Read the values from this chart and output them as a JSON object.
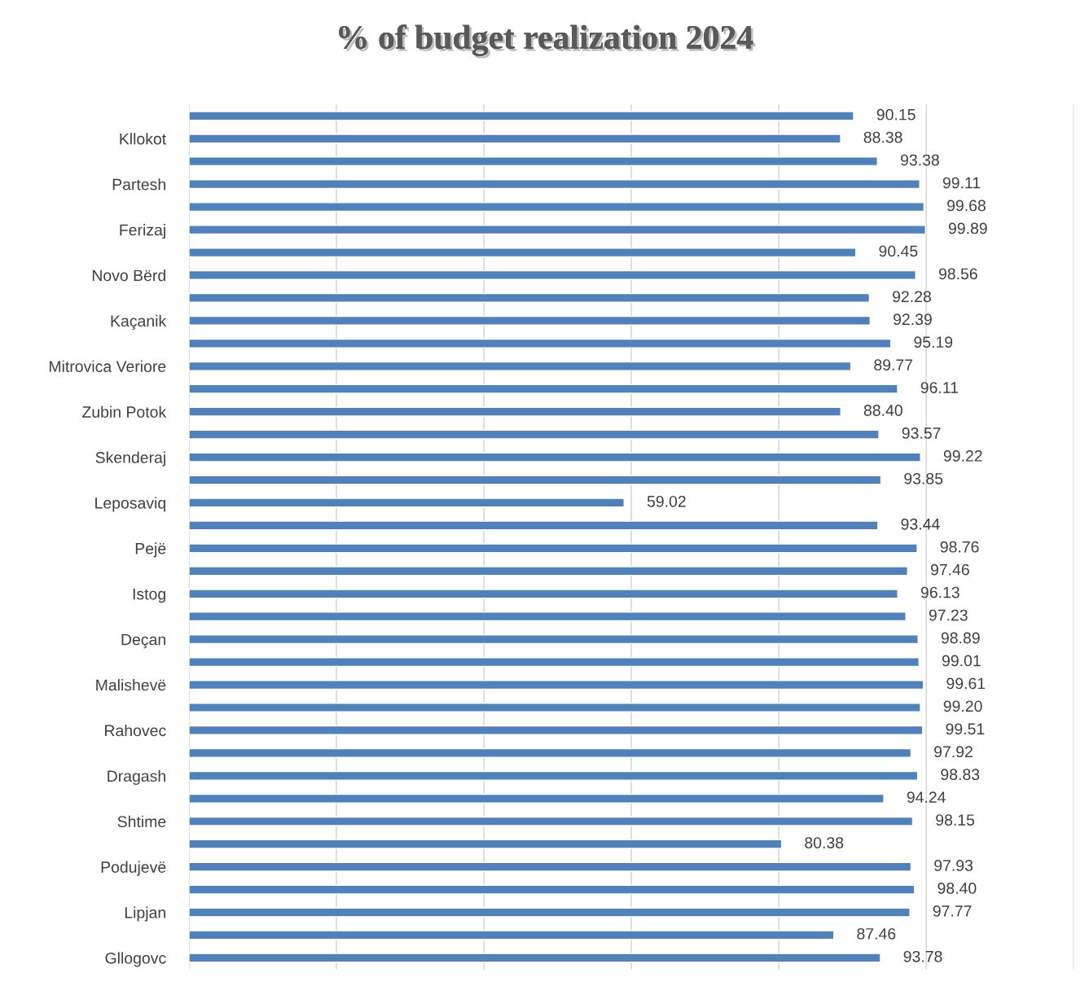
{
  "chart_data": {
    "type": "bar",
    "orientation": "horizontal",
    "title": "% of budget realization 2024",
    "categories": [
      null,
      "Kllokot",
      null,
      "Partesh",
      null,
      "Ferizaj",
      null,
      "Novo Bërd",
      null,
      "Kaçanik",
      null,
      "Mitrovica Veriore",
      null,
      "Zubin Potok",
      null,
      "Skenderaj",
      null,
      "Leposaviq",
      null,
      "Pejë",
      null,
      "Istog",
      null,
      "Deçan",
      null,
      "Malishevë",
      null,
      "Rahovec",
      null,
      "Dragash",
      null,
      "Shtime",
      null,
      "Podujevë",
      null,
      "Lipjan",
      null,
      "Gllogovc"
    ],
    "values": [
      90.15,
      88.38,
      93.38,
      99.11,
      99.68,
      99.89,
      90.45,
      98.56,
      92.28,
      92.39,
      95.19,
      89.77,
      96.11,
      88.4,
      93.57,
      99.22,
      93.85,
      59.02,
      93.44,
      98.76,
      97.46,
      96.13,
      97.23,
      98.89,
      99.01,
      99.61,
      99.2,
      99.51,
      97.92,
      98.83,
      94.24,
      98.15,
      80.38,
      97.93,
      98.4,
      97.77,
      87.46,
      93.78
    ],
    "value_labels": [
      "90.15",
      "88.38",
      "93.38",
      "99.11",
      "99.68",
      "99.89",
      "90.45",
      "98.56",
      "92.28",
      "92.39",
      "95.19",
      "89.77",
      "96.11",
      "88.40",
      "93.57",
      "99.22",
      "93.85",
      "59.02",
      "93.44",
      "98.76",
      "97.46",
      "96.13",
      "97.23",
      "98.89",
      "99.01",
      "99.61",
      "99.20",
      "99.51",
      "97.92",
      "98.83",
      "94.24",
      "98.15",
      "80.38",
      "97.93",
      "98.40",
      "97.77",
      "87.46",
      "93.78"
    ],
    "color": "#4f81bd",
    "xlim": [
      0,
      120
    ],
    "xticks": [
      {
        "value": 0,
        "label": null
      },
      {
        "value": 20,
        "label": null
      },
      {
        "value": 40,
        "label": null
      },
      {
        "value": 60,
        "label": null
      },
      {
        "value": 80,
        "label": null
      },
      {
        "value": 100,
        "label": null
      },
      {
        "value": 120,
        "label": null
      }
    ],
    "tick_labels": "y",
    "grid": "x",
    "legend": false
  }
}
